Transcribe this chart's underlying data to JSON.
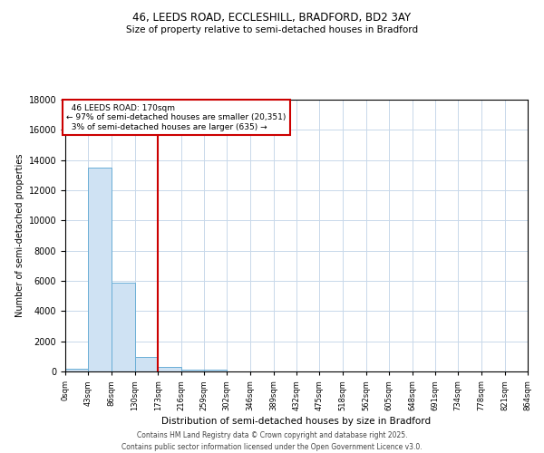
{
  "title_line1": "46, LEEDS ROAD, ECCLESHILL, BRADFORD, BD2 3AY",
  "title_line2": "Size of property relative to semi-detached houses in Bradford",
  "xlabel": "Distribution of semi-detached houses by size in Bradford",
  "ylabel": "Number of semi-detached properties",
  "property_size": 173,
  "property_label": "46 LEEDS ROAD: 170sqm",
  "pct_smaller": 97,
  "count_smaller": 20351,
  "pct_larger": 3,
  "count_larger": 635,
  "bin_edges": [
    0,
    43,
    86,
    130,
    173,
    216,
    259,
    302,
    346,
    389,
    432,
    475,
    518,
    562,
    605,
    648,
    691,
    734,
    778,
    821,
    864
  ],
  "bin_counts": [
    200,
    13500,
    5900,
    950,
    300,
    150,
    100,
    0,
    0,
    0,
    0,
    0,
    0,
    0,
    0,
    0,
    0,
    0,
    0,
    0
  ],
  "bar_color": "#cfe2f3",
  "bar_edge_color": "#6aaed6",
  "vline_color": "#cc0000",
  "annotation_box_color": "#cc0000",
  "background_color": "#ffffff",
  "grid_color": "#c8d8ea",
  "ylim": [
    0,
    18000
  ],
  "yticks": [
    0,
    2000,
    4000,
    6000,
    8000,
    10000,
    12000,
    14000,
    16000,
    18000
  ],
  "footnote_line1": "Contains HM Land Registry data © Crown copyright and database right 2025.",
  "footnote_line2": "Contains public sector information licensed under the Open Government Licence v3.0."
}
